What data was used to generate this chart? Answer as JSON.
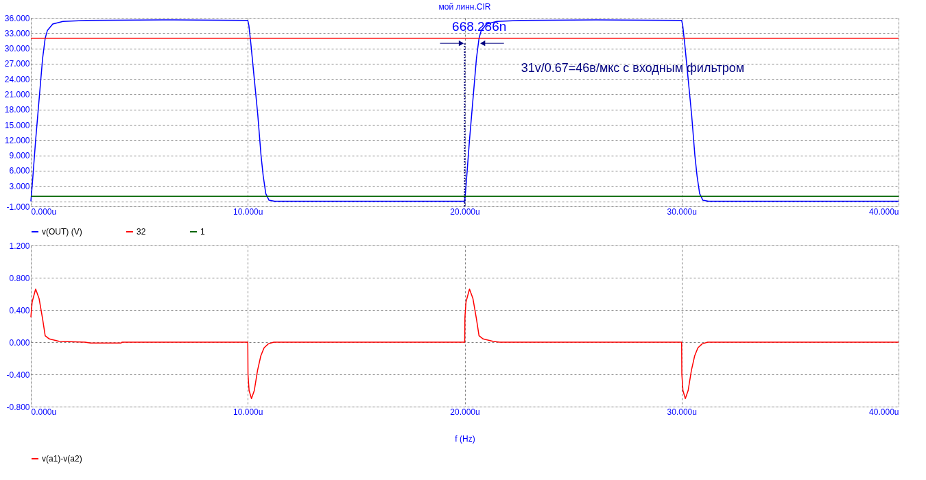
{
  "chart_data": [
    {
      "type": "line",
      "title": "мой линн.CIR",
      "xlim": [
        0,
        40
      ],
      "xticks": [
        {
          "value": 0,
          "label": "0.000u"
        },
        {
          "value": 10,
          "label": "10.000u"
        },
        {
          "value": 20,
          "label": "20.000u"
        },
        {
          "value": 30,
          "label": "30.000u"
        },
        {
          "value": 40,
          "label": "40.000u"
        }
      ],
      "ylim": [
        -1,
        36
      ],
      "yticks": [
        {
          "value": -1,
          "label": "-1.000"
        },
        {
          "value": 0,
          "label": null
        },
        {
          "value": 3,
          "label": "3.000"
        },
        {
          "value": 6,
          "label": "6.000"
        },
        {
          "value": 9,
          "label": "9.000"
        },
        {
          "value": 12,
          "label": "12.000"
        },
        {
          "value": 15,
          "label": "15.000"
        },
        {
          "value": 18,
          "label": "18.000"
        },
        {
          "value": 21,
          "label": "21.000"
        },
        {
          "value": 24,
          "label": "24.000"
        },
        {
          "value": 27,
          "label": "27.000"
        },
        {
          "value": 30,
          "label": "30.000"
        },
        {
          "value": 33,
          "label": "33.000"
        },
        {
          "value": 36,
          "label": "36.000"
        }
      ],
      "grid": true,
      "legend": "bottom",
      "series": [
        {
          "name": "v(OUT) (V)",
          "color": "#0000ff",
          "x": [
            0,
            0.06,
            0.22,
            0.38,
            0.54,
            0.66,
            0.76,
            1.01,
            1.48,
            2.58,
            6.05,
            10.0,
            10.05,
            10.14,
            10.3,
            10.46,
            10.61,
            10.71,
            10.83,
            10.98,
            11.24,
            20.0,
            20.06,
            20.22,
            20.38,
            20.54,
            20.66,
            20.76,
            21.01,
            21.48,
            22.58,
            26.05,
            30.0,
            30.05,
            30.14,
            30.3,
            30.46,
            30.61,
            30.71,
            30.83,
            30.98,
            31.24,
            40
          ],
          "values": [
            0,
            3,
            12,
            20,
            28,
            32,
            33.5,
            34.8,
            35.3,
            35.5,
            35.6,
            35.5,
            34.5,
            31,
            24,
            17,
            9,
            5,
            1.5,
            0.2,
            0,
            0,
            3,
            12,
            20,
            28,
            32,
            33.5,
            34.8,
            35.3,
            35.5,
            35.6,
            35.5,
            34.5,
            31,
            24,
            17,
            9,
            5,
            1.5,
            0.2,
            0,
            0
          ]
        },
        {
          "name": "32",
          "color": "#ff0000",
          "x": [
            0,
            40
          ],
          "values": [
            32,
            32
          ]
        },
        {
          "name": "1",
          "color": "#006400",
          "x": [
            0,
            40
          ],
          "values": [
            1,
            1
          ]
        }
      ],
      "ref_lines": [
        {
          "axis": "x",
          "value": 20,
          "color": "#000080",
          "line_style": "dotted"
        }
      ],
      "annotations": [
        {
          "text": "668.286n",
          "x": 20.67,
          "y": 31
        },
        "31v/0.67=46в/мкс с входным фильтром"
      ]
    },
    {
      "type": "line",
      "xlabel": "f (Hz)",
      "xlim": [
        0,
        40
      ],
      "xticks": [
        {
          "value": 0,
          "label": "0.000u"
        },
        {
          "value": 10,
          "label": "10.000u"
        },
        {
          "value": 20,
          "label": "20.000u"
        },
        {
          "value": 30,
          "label": "30.000u"
        },
        {
          "value": 40,
          "label": "40.000u"
        }
      ],
      "ylim": [
        -0.8,
        1.2
      ],
      "yticks": [
        {
          "value": -0.8,
          "label": "-0.800"
        },
        {
          "value": -0.4,
          "label": "-0.400"
        },
        {
          "value": 0,
          "label": "0.000"
        },
        {
          "value": 0.4,
          "label": "0.400"
        },
        {
          "value": 0.8,
          "label": "0.800"
        },
        {
          "value": 1.2,
          "label": "1.200"
        }
      ],
      "grid": true,
      "legend": "bottom",
      "series": [
        {
          "name": "v(a1)-v(a2)",
          "color": "#ff0000",
          "x": [
            0,
            0.06,
            0.22,
            0.38,
            0.54,
            0.66,
            0.85,
            1.3,
            2.5,
            2.74,
            4.16,
            4.2,
            10.0,
            10.01,
            10.06,
            10.17,
            10.3,
            10.45,
            10.6,
            10.75,
            10.95,
            11.2,
            20.0,
            20.01,
            20.06,
            20.22,
            20.38,
            20.54,
            20.66,
            20.85,
            21.3,
            21.6,
            30.0,
            30.01,
            30.06,
            30.17,
            30.3,
            30.45,
            30.6,
            30.75,
            30.95,
            31.2,
            40
          ],
          "values": [
            0.31,
            0.5,
            0.66,
            0.54,
            0.29,
            0.08,
            0.04,
            0.01,
            0,
            -0.01,
            -0.01,
            0,
            0,
            -0.4,
            -0.6,
            -0.7,
            -0.6,
            -0.35,
            -0.17,
            -0.07,
            -0.02,
            0,
            0,
            0.31,
            0.5,
            0.66,
            0.54,
            0.29,
            0.08,
            0.04,
            0.01,
            0,
            0,
            -0.4,
            -0.6,
            -0.7,
            -0.6,
            -0.35,
            -0.17,
            -0.07,
            -0.02,
            0,
            0
          ]
        }
      ]
    }
  ]
}
